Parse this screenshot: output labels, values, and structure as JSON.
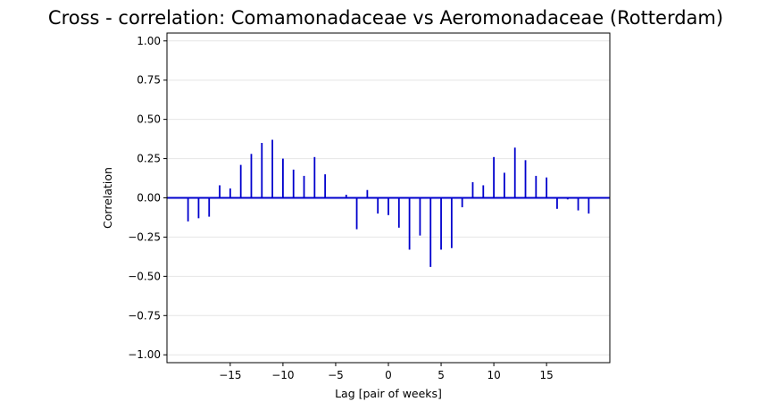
{
  "chart_data": {
    "type": "bar",
    "title": "Cross - correlation: Comamonadaceae vs Aeromonadaceae (Rotterdam)",
    "xlabel": "Lag [pair of weeks]",
    "ylabel": "Correlation",
    "xlim": [
      -21,
      21
    ],
    "ylim": [
      -1.05,
      1.05
    ],
    "xticks": [
      -15,
      -10,
      -5,
      0,
      5,
      10,
      15
    ],
    "xtick_labels": [
      "−15",
      "−10",
      "−5",
      "0",
      "5",
      "10",
      "15"
    ],
    "yticks": [
      -1.0,
      -0.75,
      -0.5,
      -0.25,
      0.0,
      0.25,
      0.5,
      0.75,
      1.0
    ],
    "ytick_labels": [
      "−1.00",
      "−0.75",
      "−0.50",
      "−0.25",
      "0.00",
      "0.25",
      "0.50",
      "0.75",
      "1.00"
    ],
    "grid": "horizontal",
    "bar_color": "#0000cd",
    "zero_line_color": "#0000cd",
    "grid_color": "#e6e6e6",
    "series": [
      {
        "x": [
          -19,
          -18,
          -17,
          -16,
          -15,
          -14,
          -13,
          -12,
          -11,
          -10,
          -9,
          -8,
          -7,
          -6,
          -5,
          -4,
          -3,
          -2,
          -1,
          0,
          1,
          2,
          3,
          4,
          5,
          6,
          7,
          8,
          9,
          10,
          11,
          12,
          13,
          14,
          15,
          16,
          17,
          18,
          19
        ],
        "values": [
          -0.15,
          -0.13,
          -0.12,
          0.08,
          0.06,
          0.21,
          0.28,
          0.35,
          0.37,
          0.25,
          0.18,
          0.14,
          0.26,
          0.15,
          0.0,
          0.02,
          -0.2,
          0.05,
          -0.1,
          -0.11,
          -0.19,
          -0.33,
          -0.24,
          -0.44,
          -0.33,
          -0.32,
          -0.06,
          0.1,
          0.08,
          0.26,
          0.16,
          0.32,
          0.24,
          0.14,
          0.13,
          -0.07,
          -0.01,
          -0.08,
          -0.1
        ]
      }
    ]
  }
}
